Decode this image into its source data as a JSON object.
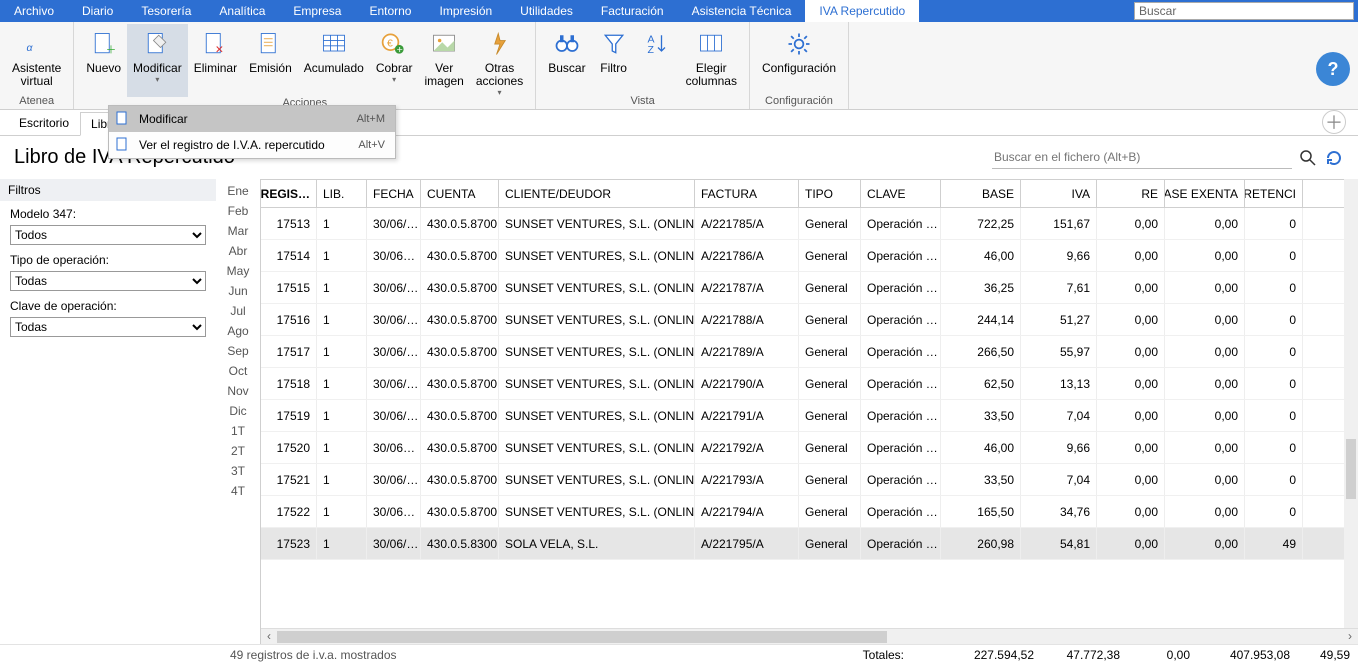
{
  "topSearchPlaceholder": "Buscar",
  "menus": [
    "Archivo",
    "Diario",
    "Tesorería",
    "Analítica",
    "Empresa",
    "Entorno",
    "Impresión",
    "Utilidades",
    "Facturación",
    "Asistencia Técnica",
    "IVA Repercutido"
  ],
  "activeMenuIndex": 10,
  "ribbon": {
    "groups": [
      {
        "label": "Atenea",
        "items": [
          {
            "name": "asistente-virtual",
            "text": "Asistente\nvirtual",
            "icon": "alpha"
          }
        ]
      },
      {
        "label": "Acciones",
        "items": [
          {
            "name": "nuevo",
            "text": "Nuevo",
            "icon": "doc-plus"
          },
          {
            "name": "modificar",
            "text": "Modificar",
            "icon": "doc-edit",
            "caret": true,
            "active": true
          },
          {
            "name": "eliminar",
            "text": "Eliminar",
            "icon": "doc-x"
          },
          {
            "name": "emision",
            "text": "Emisión",
            "icon": "doc-lines"
          },
          {
            "name": "acumulado",
            "text": "Acumulado",
            "icon": "grid"
          },
          {
            "name": "cobrar",
            "text": "Cobrar",
            "icon": "money",
            "caret": true
          },
          {
            "name": "ver-imagen",
            "text": "Ver\nimagen",
            "icon": "image"
          },
          {
            "name": "otras-acciones",
            "text": "Otras\nacciones",
            "icon": "bolt",
            "caret": true
          }
        ]
      },
      {
        "label": "Vista",
        "items": [
          {
            "name": "buscar",
            "text": "Buscar",
            "icon": "binoculars"
          },
          {
            "name": "filtro",
            "text": "Filtro",
            "icon": "funnel"
          },
          {
            "name": "orden",
            "text": "",
            "icon": "sort"
          },
          {
            "name": "elegir-columnas",
            "text": "Elegir\ncolumnas",
            "icon": "columns"
          }
        ]
      },
      {
        "label": "Configuración",
        "items": [
          {
            "name": "configuracion",
            "text": "Configuración",
            "icon": "gear"
          }
        ]
      }
    ]
  },
  "dropdown": {
    "items": [
      {
        "label": "Modificar",
        "shortcut": "Alt+M",
        "selected": true
      },
      {
        "label": "Ver el registro de I.V.A. repercutido",
        "shortcut": "Alt+V",
        "selected": false
      }
    ]
  },
  "tabs": [
    {
      "label": "Escritorio",
      "closeable": false,
      "active": false
    },
    {
      "label": "Libro de IVA Repercutido",
      "closeable": true,
      "active": true
    }
  ],
  "pageTitle": "Libro de IVA Repercutido",
  "fileSearchPlaceholder": "Buscar en el fichero (Alt+B)",
  "filters": {
    "title": "Filtros",
    "modelo347": {
      "label": "Modelo 347:",
      "value": "Todos"
    },
    "tipoOperacion": {
      "label": "Tipo de operación:",
      "value": "Todas"
    },
    "claveOperacion": {
      "label": "Clave de operación:",
      "value": "Todas"
    }
  },
  "months": [
    "Ene",
    "Feb",
    "Mar",
    "Abr",
    "May",
    "Jun",
    "Jul",
    "Ago",
    "Sep",
    "Oct",
    "Nov",
    "Dic",
    "1T",
    "2T",
    "3T",
    "4T"
  ],
  "columns": [
    "REGIS…",
    "LIB.",
    "FECHA",
    "CUENTA",
    "CLIENTE/DEUDOR",
    "FACTURA",
    "TIPO",
    "CLAVE",
    "BASE",
    "IVA",
    "RE",
    "BASE EXENTA",
    "RETENCI"
  ],
  "rows": [
    {
      "regis": "17513",
      "lib": "1",
      "fecha": "30/06/…",
      "cuenta": "430.0.5.8700",
      "cliente": "SUNSET VENTURES, S.L. (ONLINE)",
      "factura": "A/221785/A",
      "tipo": "General",
      "clave": "Operación …",
      "base": "722,25",
      "iva": "151,67",
      "re": "0,00",
      "bexenta": "0,00",
      "ret": "0"
    },
    {
      "regis": "17514",
      "lib": "1",
      "fecha": "30/06…",
      "cuenta": "430.0.5.8700",
      "cliente": "SUNSET VENTURES, S.L. (ONLINE)",
      "factura": "A/221786/A",
      "tipo": "General",
      "clave": "Operación …",
      "base": "46,00",
      "iva": "9,66",
      "re": "0,00",
      "bexenta": "0,00",
      "ret": "0"
    },
    {
      "regis": "17515",
      "lib": "1",
      "fecha": "30/06/…",
      "cuenta": "430.0.5.8700",
      "cliente": "SUNSET VENTURES, S.L. (ONLINE)",
      "factura": "A/221787/A",
      "tipo": "General",
      "clave": "Operación …",
      "base": "36,25",
      "iva": "7,61",
      "re": "0,00",
      "bexenta": "0,00",
      "ret": "0"
    },
    {
      "regis": "17516",
      "lib": "1",
      "fecha": "30/06/…",
      "cuenta": "430.0.5.8700",
      "cliente": "SUNSET VENTURES, S.L. (ONLINE)",
      "factura": "A/221788/A",
      "tipo": "General",
      "clave": "Operación …",
      "base": "244,14",
      "iva": "51,27",
      "re": "0,00",
      "bexenta": "0,00",
      "ret": "0"
    },
    {
      "regis": "17517",
      "lib": "1",
      "fecha": "30/06/…",
      "cuenta": "430.0.5.8700",
      "cliente": "SUNSET VENTURES, S.L. (ONLINE)",
      "factura": "A/221789/A",
      "tipo": "General",
      "clave": "Operación …",
      "base": "266,50",
      "iva": "55,97",
      "re": "0,00",
      "bexenta": "0,00",
      "ret": "0"
    },
    {
      "regis": "17518",
      "lib": "1",
      "fecha": "30/06/…",
      "cuenta": "430.0.5.8700",
      "cliente": "SUNSET VENTURES, S.L. (ONLINE)",
      "factura": "A/221790/A",
      "tipo": "General",
      "clave": "Operación …",
      "base": "62,50",
      "iva": "13,13",
      "re": "0,00",
      "bexenta": "0,00",
      "ret": "0"
    },
    {
      "regis": "17519",
      "lib": "1",
      "fecha": "30/06/…",
      "cuenta": "430.0.5.8700",
      "cliente": "SUNSET VENTURES, S.L. (ONLINE)",
      "factura": "A/221791/A",
      "tipo": "General",
      "clave": "Operación …",
      "base": "33,50",
      "iva": "7,04",
      "re": "0,00",
      "bexenta": "0,00",
      "ret": "0"
    },
    {
      "regis": "17520",
      "lib": "1",
      "fecha": "30/06…",
      "cuenta": "430.0.5.8700",
      "cliente": "SUNSET VENTURES, S.L. (ONLINE)",
      "factura": "A/221792/A",
      "tipo": "General",
      "clave": "Operación …",
      "base": "46,00",
      "iva": "9,66",
      "re": "0,00",
      "bexenta": "0,00",
      "ret": "0"
    },
    {
      "regis": "17521",
      "lib": "1",
      "fecha": "30/06/…",
      "cuenta": "430.0.5.8700",
      "cliente": "SUNSET VENTURES, S.L. (ONLINE)",
      "factura": "A/221793/A",
      "tipo": "General",
      "clave": "Operación …",
      "base": "33,50",
      "iva": "7,04",
      "re": "0,00",
      "bexenta": "0,00",
      "ret": "0"
    },
    {
      "regis": "17522",
      "lib": "1",
      "fecha": "30/06…",
      "cuenta": "430.0.5.8700",
      "cliente": "SUNSET VENTURES, S.L. (ONLINE)",
      "factura": "A/221794/A",
      "tipo": "General",
      "clave": "Operación …",
      "base": "165,50",
      "iva": "34,76",
      "re": "0,00",
      "bexenta": "0,00",
      "ret": "0"
    },
    {
      "regis": "17523",
      "lib": "1",
      "fecha": "30/06/…",
      "cuenta": "430.0.5.8300",
      "cliente": "SOLA VELA, S.L.",
      "factura": "A/221795/A",
      "tipo": "General",
      "clave": "Operación …",
      "base": "260,98",
      "iva": "54,81",
      "re": "0,00",
      "bexenta": "0,00",
      "ret": "49",
      "selected": true
    }
  ],
  "statusText": "49 registros de i.v.a. mostrados",
  "totals": {
    "label": "Totales:",
    "base": "227.594,52",
    "iva": "47.772,38",
    "re": "0,00",
    "bexenta": "407.953,08",
    "ret": "49,59"
  }
}
